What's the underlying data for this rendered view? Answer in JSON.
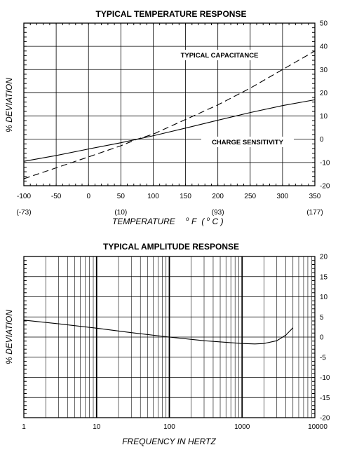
{
  "chart_data": [
    {
      "type": "line",
      "title": "TYPICAL TEMPERATURE RESPONSE",
      "xlabel": "TEMPERATURE",
      "xlabel_unit_primary": "F",
      "xlabel_unit_secondary": "C",
      "xlabel_degree_mark": "o",
      "ylabel": "% DEVIATION",
      "xlim": [
        -100,
        350
      ],
      "ylim": [
        -20,
        50
      ],
      "x_ticks": [
        "-100",
        "-50",
        "0",
        "50",
        "100",
        "150",
        "200",
        "250",
        "300",
        "350"
      ],
      "y_ticks": [
        "50",
        "40",
        "30",
        "20",
        "10",
        "0",
        "-10",
        "-20"
      ],
      "secondary_x_ticks": [
        {
          "at": -100,
          "label": "(-73)"
        },
        {
          "at": 50,
          "label": "(10)"
        },
        {
          "at": 200,
          "label": "(93)"
        },
        {
          "at": 350,
          "label": "(177)"
        }
      ],
      "grid": true,
      "series": [
        {
          "name": "TYPICAL CAPACITANCE",
          "style": "dashed",
          "x": [
            -100,
            -50,
            0,
            50,
            75,
            100,
            150,
            200,
            250,
            300,
            350
          ],
          "y": [
            -17,
            -12.3,
            -7.6,
            -2.8,
            0,
            2.2,
            8.5,
            14.8,
            22,
            30,
            38
          ]
        },
        {
          "name": "CHARGE SENSITIVITY",
          "style": "solid",
          "x": [
            -100,
            -50,
            0,
            50,
            75,
            100,
            150,
            200,
            250,
            300,
            350
          ],
          "y": [
            -9.5,
            -7,
            -4.2,
            -1.5,
            0,
            1.5,
            4.8,
            8.2,
            11.5,
            14.5,
            17
          ]
        }
      ]
    },
    {
      "type": "line",
      "title": "TYPICAL AMPLITUDE RESPONSE",
      "xlabel": "FREQUENCY IN HERTZ",
      "ylabel": "% DEVIATION",
      "x_scale": "log",
      "xlim": [
        1,
        10000
      ],
      "ylim": [
        -20,
        20
      ],
      "x_ticks": [
        "1",
        "10",
        "100",
        "1000",
        "10000"
      ],
      "y_ticks": [
        "20",
        "15",
        "10",
        "5",
        "0",
        "-5",
        "-10",
        "-15",
        "-20"
      ],
      "grid": true,
      "series": [
        {
          "style": "solid",
          "x": [
            1,
            3,
            10,
            30,
            100,
            300,
            1000,
            1500,
            2000,
            3000,
            4000,
            5000
          ],
          "y": [
            4.2,
            3.3,
            2.2,
            1.1,
            0,
            -0.9,
            -1.6,
            -1.7,
            -1.6,
            -0.9,
            0.5,
            2.3
          ]
        }
      ]
    }
  ]
}
